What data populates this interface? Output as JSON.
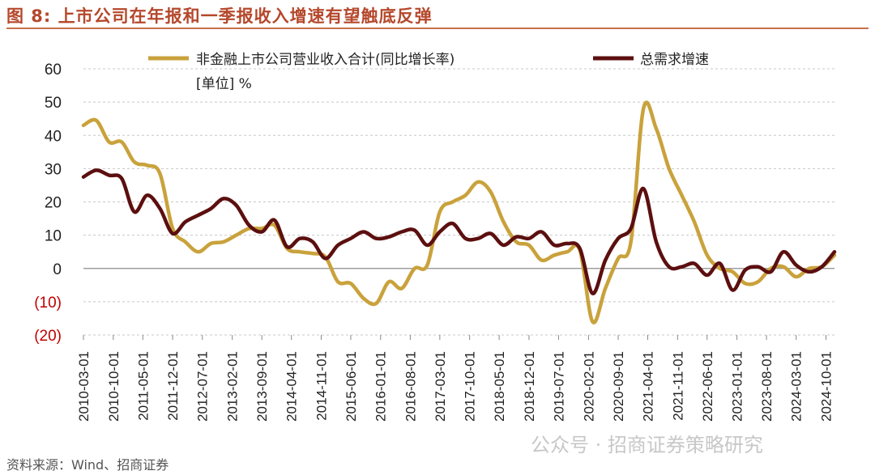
{
  "figure": {
    "title": "图 8:  上市公司在年报和一季报收入增速有望触底反弹",
    "source": "资料来源：Wind、招商证券",
    "watermark": "公众号 · 招商证券策略研究",
    "unit_label": "[单位] %"
  },
  "colors": {
    "title": "#b5482c",
    "series_revenue": "#c9a23c",
    "series_demand": "#5c0f0f",
    "negative_tick": "#c00000",
    "grid": "#c8c8c8"
  },
  "chart_data": {
    "type": "line",
    "title": "",
    "xlabel": "",
    "ylabel": "",
    "ylim": [
      -20,
      60
    ],
    "y_ticks": [
      60,
      50,
      40,
      30,
      20,
      10,
      0,
      -10,
      -20
    ],
    "y_tick_labels": [
      "60",
      "50",
      "40",
      "30",
      "20",
      "10",
      "0",
      "(10)",
      "(20)"
    ],
    "grid": true,
    "legend": "top",
    "x_tick_labels": [
      "2010-03-01",
      "2010-10-01",
      "2011-05-01",
      "2011-12-01",
      "2012-07-01",
      "2013-02-01",
      "2013-09-01",
      "2014-04-01",
      "2014-11-01",
      "2015-06-01",
      "2016-01-01",
      "2016-08-01",
      "2017-03-01",
      "2017-10-01",
      "2018-05-01",
      "2018-12-01",
      "2019-07-01",
      "2020-02-01",
      "2020-09-01",
      "2021-04-01",
      "2021-11-01",
      "2022-06-01",
      "2023-01-01",
      "2023-08-01",
      "2024-03-01",
      "2024-10-01"
    ],
    "series": [
      {
        "name": "非金融上市公司营业收入合计(同比增长率)",
        "points": [
          [
            "2010-03-01",
            43
          ],
          [
            "2010-06-01",
            44.5
          ],
          [
            "2010-09-01",
            38
          ],
          [
            "2010-12-01",
            38
          ],
          [
            "2011-03-01",
            32
          ],
          [
            "2011-06-01",
            31
          ],
          [
            "2011-09-01",
            28.5
          ],
          [
            "2011-12-01",
            12
          ],
          [
            "2012-03-01",
            8
          ],
          [
            "2012-06-01",
            5
          ],
          [
            "2012-09-01",
            7.5
          ],
          [
            "2012-12-01",
            8
          ],
          [
            "2013-03-01",
            10
          ],
          [
            "2013-06-01",
            12
          ],
          [
            "2013-09-01",
            12
          ],
          [
            "2013-12-01",
            13
          ],
          [
            "2014-03-01",
            6
          ],
          [
            "2014-06-01",
            5
          ],
          [
            "2014-09-01",
            4.5
          ],
          [
            "2014-12-01",
            3.5
          ],
          [
            "2015-03-01",
            -4
          ],
          [
            "2015-06-01",
            -4.5
          ],
          [
            "2015-09-01",
            -9
          ],
          [
            "2015-12-01",
            -10.5
          ],
          [
            "2016-03-01",
            -4
          ],
          [
            "2016-06-01",
            -6
          ],
          [
            "2016-09-01",
            0
          ],
          [
            "2016-12-01",
            1
          ],
          [
            "2017-03-01",
            17
          ],
          [
            "2017-06-01",
            20
          ],
          [
            "2017-09-01",
            22
          ],
          [
            "2017-12-01",
            26
          ],
          [
            "2018-03-01",
            23
          ],
          [
            "2018-06-01",
            14
          ],
          [
            "2018-09-01",
            8
          ],
          [
            "2018-12-01",
            7
          ],
          [
            "2019-03-01",
            2.5
          ],
          [
            "2019-06-01",
            4
          ],
          [
            "2019-09-01",
            5
          ],
          [
            "2019-12-01",
            5.5
          ],
          [
            "2020-03-01",
            -16
          ],
          [
            "2020-06-01",
            -6
          ],
          [
            "2020-09-01",
            3
          ],
          [
            "2020-12-01",
            8
          ],
          [
            "2021-03-01",
            48
          ],
          [
            "2021-06-01",
            42
          ],
          [
            "2021-09-01",
            30
          ],
          [
            "2021-12-01",
            22
          ],
          [
            "2022-03-01",
            14
          ],
          [
            "2022-06-01",
            4
          ],
          [
            "2022-09-01",
            0
          ],
          [
            "2022-12-01",
            -1
          ],
          [
            "2023-03-01",
            -4.5
          ],
          [
            "2023-06-01",
            -4
          ],
          [
            "2023-09-01",
            0
          ],
          [
            "2023-12-01",
            0.5
          ],
          [
            "2024-03-01",
            -2.5
          ],
          [
            "2024-06-01",
            0
          ],
          [
            "2024-09-01",
            0.5
          ],
          [
            "2024-12-01",
            4
          ]
        ]
      },
      {
        "name": "总需求增速",
        "points": [
          [
            "2010-03-01",
            27.5
          ],
          [
            "2010-06-01",
            29.5
          ],
          [
            "2010-09-01",
            28
          ],
          [
            "2010-12-01",
            27
          ],
          [
            "2011-03-01",
            17
          ],
          [
            "2011-06-01",
            22
          ],
          [
            "2011-09-01",
            18
          ],
          [
            "2011-12-01",
            10.5
          ],
          [
            "2012-03-01",
            14
          ],
          [
            "2012-06-01",
            16
          ],
          [
            "2012-09-01",
            18
          ],
          [
            "2012-12-01",
            21
          ],
          [
            "2013-03-01",
            19
          ],
          [
            "2013-06-01",
            13
          ],
          [
            "2013-09-01",
            11
          ],
          [
            "2013-12-01",
            14.5
          ],
          [
            "2014-03-01",
            6.5
          ],
          [
            "2014-06-01",
            9
          ],
          [
            "2014-09-01",
            8
          ],
          [
            "2014-12-01",
            3
          ],
          [
            "2015-03-01",
            7
          ],
          [
            "2015-06-01",
            9
          ],
          [
            "2015-09-01",
            11
          ],
          [
            "2015-12-01",
            9
          ],
          [
            "2016-03-01",
            9.5
          ],
          [
            "2016-06-01",
            11
          ],
          [
            "2016-09-01",
            11.5
          ],
          [
            "2016-12-01",
            7
          ],
          [
            "2017-03-01",
            11
          ],
          [
            "2017-06-01",
            13.5
          ],
          [
            "2017-09-01",
            9
          ],
          [
            "2017-12-01",
            9
          ],
          [
            "2018-03-01",
            10.5
          ],
          [
            "2018-06-01",
            7
          ],
          [
            "2018-09-01",
            9.5
          ],
          [
            "2018-12-01",
            9
          ],
          [
            "2019-03-01",
            11
          ],
          [
            "2019-06-01",
            7
          ],
          [
            "2019-09-01",
            7.5
          ],
          [
            "2019-12-01",
            6
          ],
          [
            "2020-03-01",
            -7.5
          ],
          [
            "2020-06-01",
            2.5
          ],
          [
            "2020-09-01",
            9
          ],
          [
            "2020-12-01",
            12
          ],
          [
            "2021-03-01",
            24
          ],
          [
            "2021-06-01",
            8
          ],
          [
            "2021-09-01",
            0.5
          ],
          [
            "2021-12-01",
            0.5
          ],
          [
            "2022-03-01",
            1.5
          ],
          [
            "2022-06-01",
            -2
          ],
          [
            "2022-09-01",
            1.5
          ],
          [
            "2022-12-01",
            -6.5
          ],
          [
            "2023-03-01",
            -0.5
          ],
          [
            "2023-06-01",
            0.5
          ],
          [
            "2023-09-01",
            -1
          ],
          [
            "2023-12-01",
            5
          ],
          [
            "2024-03-01",
            1
          ],
          [
            "2024-06-01",
            -1
          ],
          [
            "2024-09-01",
            0.5
          ],
          [
            "2024-12-01",
            5
          ]
        ]
      }
    ]
  }
}
